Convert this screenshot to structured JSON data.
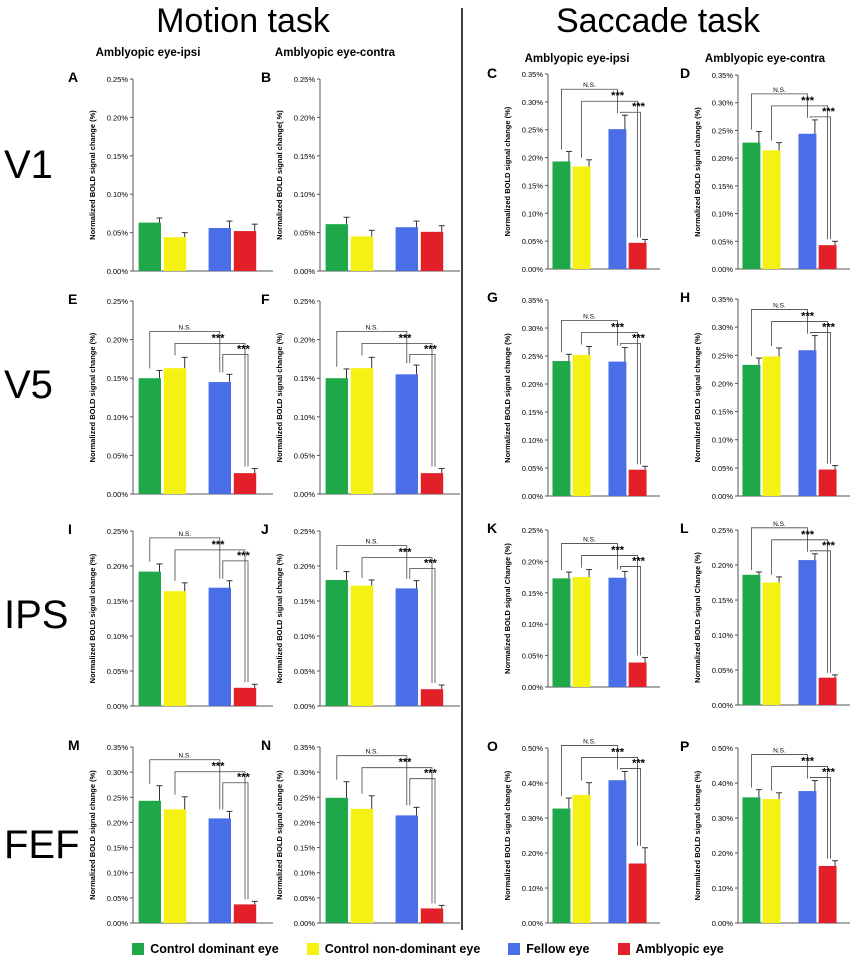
{
  "figure": {
    "task_titles": [
      "Motion task",
      "Saccade task"
    ],
    "column_titles": [
      "Amblyopic eye-ipsi",
      "Amblyopic eye-contra",
      "Amblyopic eye-ipsi",
      "Amblyopic eye-contra"
    ],
    "row_labels": [
      "V1",
      "V5",
      "IPS",
      "FEF"
    ],
    "sig_labels": {
      "ns": "N.S.",
      "sig": "***"
    }
  },
  "legend": [
    {
      "label": "Control dominant eye",
      "color": "#1ea84a"
    },
    {
      "label": "Control non-dominant eye",
      "color": "#f5f213"
    },
    {
      "label": "Fellow eye",
      "color": "#4a6ee8"
    },
    {
      "label": "Amblyopic eye",
      "color": "#e3202a"
    }
  ],
  "chart_data": [
    {
      "panel": "A",
      "type": "bar",
      "region": "V1",
      "task": "Motion task",
      "condition": "Amblyopic eye-ipsi",
      "ylabel": "Normalized BOLD signal change (%)",
      "ylim": [
        0,
        0.25
      ],
      "yticks": [
        "0.00%",
        "0.05%",
        "0.10%",
        "0.15%",
        "0.20%",
        "0.25%"
      ],
      "categories": [
        "Control dominant eye",
        "Control non-dominant eye",
        "Fellow eye",
        "Amblyopic eye"
      ],
      "values": [
        0.063,
        0.044,
        0.056,
        0.052
      ],
      "errors": [
        0.006,
        0.006,
        0.009,
        0.009
      ],
      "significance": false
    },
    {
      "panel": "B",
      "type": "bar",
      "region": "V1",
      "task": "Motion task",
      "condition": "Amblyopic eye-contra",
      "ylabel": "Normalized BOLD signal change( %)",
      "ylim": [
        0,
        0.25
      ],
      "yticks": [
        "0.00%",
        "0.05%",
        "0.10%",
        "0.15%",
        "0.20%",
        "0.25%"
      ],
      "categories": [
        "Control dominant eye",
        "Control non-dominant eye",
        "Fellow eye",
        "Amblyopic eye"
      ],
      "values": [
        0.061,
        0.045,
        0.057,
        0.051
      ],
      "errors": [
        0.009,
        0.008,
        0.008,
        0.008
      ],
      "significance": false
    },
    {
      "panel": "C",
      "type": "bar",
      "region": "V1",
      "task": "Saccade task",
      "condition": "Amblyopic eye-ipsi",
      "ylabel": "Normalized BOLD signal change (%)",
      "ylim": [
        0,
        0.35
      ],
      "yticks": [
        "0.00%",
        "0.05%",
        "0.10%",
        "0.15%",
        "0.20%",
        "0.25%",
        "0.30%",
        "0.35%"
      ],
      "categories": [
        "Control dominant eye",
        "Control non-dominant eye",
        "Fellow eye",
        "Amblyopic eye"
      ],
      "values": [
        0.193,
        0.184,
        0.251,
        0.047
      ],
      "errors": [
        0.018,
        0.012,
        0.025,
        0.006
      ],
      "significance": true
    },
    {
      "panel": "D",
      "type": "bar",
      "region": "V1",
      "task": "Saccade task",
      "condition": "Amblyopic eye-contra",
      "ylabel": "Normalized BOLD signal change (%)",
      "ylim": [
        0,
        0.35
      ],
      "yticks": [
        "0.00%",
        "0.05%",
        "0.10%",
        "0.15%",
        "0.20%",
        "0.25%",
        "0.30%",
        "0.35%"
      ],
      "categories": [
        "Control dominant eye",
        "Control non-dominant eye",
        "Fellow eye",
        "Amblyopic eye"
      ],
      "values": [
        0.228,
        0.214,
        0.244,
        0.043
      ],
      "errors": [
        0.02,
        0.014,
        0.025,
        0.007
      ],
      "significance": true
    },
    {
      "panel": "E",
      "type": "bar",
      "region": "V5",
      "task": "Motion task",
      "condition": "Amblyopic eye-ipsi",
      "ylabel": "Normalized BOLD signal change (%)",
      "ylim": [
        0,
        0.25
      ],
      "yticks": [
        "0.00%",
        "0.05%",
        "0.10%",
        "0.15%",
        "0.20%",
        "0.25%"
      ],
      "categories": [
        "Control dominant eye",
        "Control non-dominant eye",
        "Fellow eye",
        "Amblyopic eye"
      ],
      "values": [
        0.15,
        0.163,
        0.145,
        0.027
      ],
      "errors": [
        0.01,
        0.014,
        0.01,
        0.006
      ],
      "significance": true
    },
    {
      "panel": "F",
      "type": "bar",
      "region": "V5",
      "task": "Motion task",
      "condition": "Amblyopic eye-contra",
      "ylabel": "Normalized BOLD signal change (%)",
      "ylim": [
        0,
        0.25
      ],
      "yticks": [
        "0.00%",
        "0.05%",
        "0.10%",
        "0.15%",
        "0.20%",
        "0.25%"
      ],
      "categories": [
        "Control dominant eye",
        "Control non-dominant eye",
        "Fellow eye",
        "Amblyopic eye"
      ],
      "values": [
        0.15,
        0.163,
        0.155,
        0.027
      ],
      "errors": [
        0.012,
        0.014,
        0.012,
        0.006
      ],
      "significance": true
    },
    {
      "panel": "G",
      "type": "bar",
      "region": "V5",
      "task": "Saccade task",
      "condition": "Amblyopic eye-ipsi",
      "ylabel": "Normalized BOLD signal change (%)",
      "ylim": [
        0,
        0.35
      ],
      "yticks": [
        "0.00%",
        "0.05%",
        "0.10%",
        "0.15%",
        "0.20%",
        "0.25%",
        "0.30%",
        "0.35%"
      ],
      "categories": [
        "Control dominant eye",
        "Control non-dominant eye",
        "Fellow eye",
        "Amblyopic eye"
      ],
      "values": [
        0.241,
        0.252,
        0.24,
        0.047
      ],
      "errors": [
        0.012,
        0.015,
        0.025,
        0.006
      ],
      "significance": true
    },
    {
      "panel": "H",
      "type": "bar",
      "region": "V5",
      "task": "Saccade task",
      "condition": "Amblyopic eye-contra",
      "ylabel": "Normalized BOLD signal change (%)",
      "ylim": [
        0,
        0.35
      ],
      "yticks": [
        "0.00%",
        "0.05%",
        "0.10%",
        "0.15%",
        "0.20%",
        "0.25%",
        "0.30%",
        "0.35%"
      ],
      "categories": [
        "Control dominant eye",
        "Control non-dominant eye",
        "Fellow eye",
        "Amblyopic eye"
      ],
      "values": [
        0.233,
        0.248,
        0.259,
        0.047
      ],
      "errors": [
        0.012,
        0.015,
        0.026,
        0.007
      ],
      "significance": true
    },
    {
      "panel": "I",
      "type": "bar",
      "region": "IPS",
      "task": "Motion task",
      "condition": "Amblyopic eye-ipsi",
      "ylabel": "Normalized BOLD signal change (%)",
      "ylim": [
        0,
        0.25
      ],
      "yticks": [
        "0.00%",
        "0.05%",
        "0.10%",
        "0.15%",
        "0.20%",
        "0.25%"
      ],
      "categories": [
        "Control dominant eye",
        "Control non-dominant eye",
        "Fellow eye",
        "Amblyopic eye"
      ],
      "values": [
        0.192,
        0.164,
        0.169,
        0.026
      ],
      "errors": [
        0.011,
        0.012,
        0.01,
        0.005
      ],
      "significance": true
    },
    {
      "panel": "J",
      "type": "bar",
      "region": "IPS",
      "task": "Motion task",
      "condition": "Amblyopic eye-contra",
      "ylabel": "Normalized BOLD signal change (%)",
      "ylim": [
        0,
        0.25
      ],
      "yticks": [
        "0.00%",
        "0.05%",
        "0.10%",
        "0.15%",
        "0.20%",
        "0.25%"
      ],
      "categories": [
        "Control dominant eye",
        "Control non-dominant eye",
        "Fellow eye",
        "Amblyopic eye"
      ],
      "values": [
        0.18,
        0.172,
        0.168,
        0.024
      ],
      "errors": [
        0.012,
        0.008,
        0.011,
        0.006
      ],
      "significance": true
    },
    {
      "panel": "K",
      "type": "bar",
      "region": "IPS",
      "task": "Saccade task",
      "condition": "Amblyopic eye-ipsi",
      "ylabel": "Normalized BOLD signal Change (%)",
      "ylim": [
        0,
        0.25
      ],
      "yticks": [
        "0.00%",
        "0.05%",
        "0.10%",
        "0.15%",
        "0.20%",
        "0.25%"
      ],
      "categories": [
        "Control dominant eye",
        "Control non-dominant eye",
        "Fellow eye",
        "Amblyopic eye"
      ],
      "values": [
        0.173,
        0.175,
        0.174,
        0.039
      ],
      "errors": [
        0.01,
        0.012,
        0.01,
        0.008
      ],
      "significance": true
    },
    {
      "panel": "L",
      "type": "bar",
      "region": "IPS",
      "task": "Saccade task",
      "condition": "Amblyopic eye-contra",
      "ylabel": "Normalized BOLD signal Change (%)",
      "ylim": [
        0,
        0.25
      ],
      "yticks": [
        "0.00%",
        "0.05%",
        "0.10%",
        "0.15%",
        "0.20%",
        "0.25%"
      ],
      "categories": [
        "Control dominant eye",
        "Control non-dominant eye",
        "Fellow eye",
        "Amblyopic eye"
      ],
      "values": [
        0.186,
        0.175,
        0.207,
        0.039
      ],
      "errors": [
        0.004,
        0.008,
        0.009,
        0.004
      ],
      "significance": true
    },
    {
      "panel": "M",
      "type": "bar",
      "region": "FEF",
      "task": "Motion task",
      "condition": "Amblyopic eye-ipsi",
      "ylabel": "Normalized BOLD signal change (%)",
      "ylim": [
        0,
        0.35
      ],
      "yticks": [
        "0.00%",
        "0.05%",
        "0.10%",
        "0.15%",
        "0.20%",
        "0.25%",
        "0.30%",
        "0.35%"
      ],
      "categories": [
        "Control dominant eye",
        "Control non-dominant eye",
        "Fellow eye",
        "Amblyopic eye"
      ],
      "values": [
        0.243,
        0.226,
        0.208,
        0.037
      ],
      "errors": [
        0.03,
        0.025,
        0.014,
        0.006
      ],
      "significance": true
    },
    {
      "panel": "N",
      "type": "bar",
      "region": "FEF",
      "task": "Motion task",
      "condition": "Amblyopic eye-contra",
      "ylabel": "Normalized BOLD signal change (%)",
      "ylim": [
        0,
        0.35
      ],
      "yticks": [
        "0.00%",
        "0.05%",
        "0.10%",
        "0.15%",
        "0.20%",
        "0.25%",
        "0.30%",
        "0.35%"
      ],
      "categories": [
        "Control dominant eye",
        "Control non-dominant eye",
        "Fellow eye",
        "Amblyopic eye"
      ],
      "values": [
        0.249,
        0.227,
        0.214,
        0.029
      ],
      "errors": [
        0.032,
        0.026,
        0.016,
        0.006
      ],
      "significance": true
    },
    {
      "panel": "O",
      "type": "bar",
      "region": "FEF",
      "task": "Saccade task",
      "condition": "Amblyopic eye-ipsi",
      "ylabel": "Normalized BOLD signal change (%)",
      "ylim": [
        0,
        0.5
      ],
      "yticks": [
        "0.00%",
        "0.10%",
        "0.20%",
        "0.30%",
        "0.40%",
        "0.50%"
      ],
      "categories": [
        "Control dominant eye",
        "Control non-dominant eye",
        "Fellow eye",
        "Amblyopic eye"
      ],
      "values": [
        0.327,
        0.366,
        0.408,
        0.17
      ],
      "errors": [
        0.03,
        0.035,
        0.025,
        0.045
      ],
      "significance": true
    },
    {
      "panel": "P",
      "type": "bar",
      "region": "FEF",
      "task": "Saccade task",
      "condition": "Amblyopic eye-contra",
      "ylabel": "Normalized BOLD signal change (%)",
      "ylim": [
        0,
        0.5
      ],
      "yticks": [
        "0.00%",
        "0.10%",
        "0.20%",
        "0.30%",
        "0.40%",
        "0.50%"
      ],
      "categories": [
        "Control dominant eye",
        "Control non-dominant eye",
        "Fellow eye",
        "Amblyopic eye"
      ],
      "values": [
        0.359,
        0.354,
        0.377,
        0.163
      ],
      "errors": [
        0.022,
        0.018,
        0.03,
        0.015
      ],
      "significance": true
    }
  ]
}
